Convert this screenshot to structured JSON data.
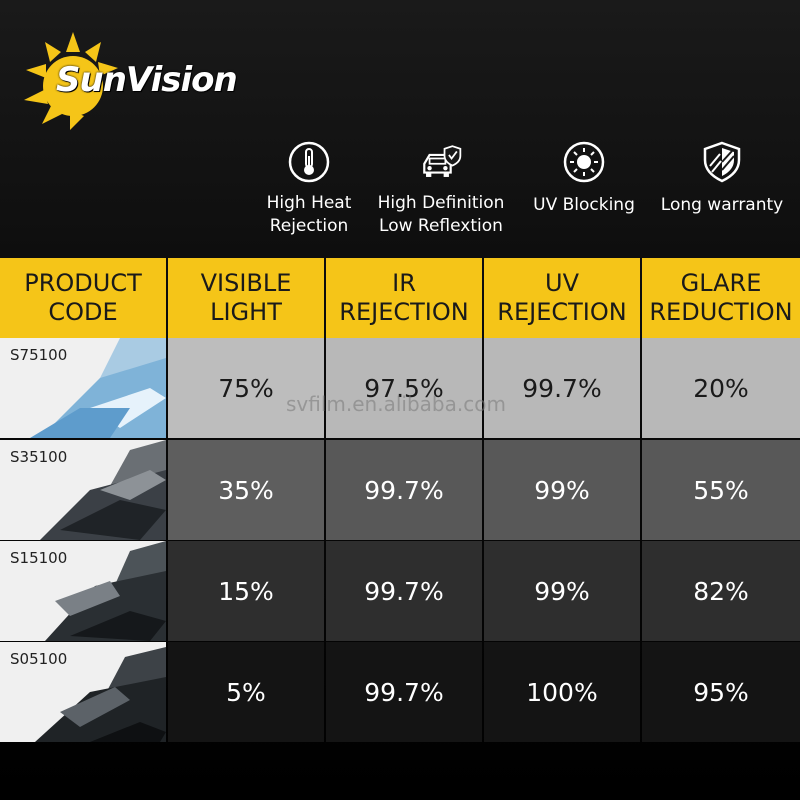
{
  "brand": {
    "name": "SunVision",
    "accent": "#f5c518"
  },
  "features": [
    {
      "icon": "thermometer-icon",
      "label": "High Heat\nRejection"
    },
    {
      "icon": "car-shield-icon",
      "label": "High Definition\nLow Reflextion"
    },
    {
      "icon": "sun-uv-icon",
      "label": "UV Blocking"
    },
    {
      "icon": "shield-icon",
      "label": "Long warranty"
    }
  ],
  "table": {
    "headers": [
      "PRODUCT\nCODE",
      "VISIBLE\nLIGHT",
      "IR\nREJECTION",
      "UV\nREJECTION",
      "GLARE\nREDUCTION"
    ],
    "rows": [
      {
        "code": "S75100",
        "visible_light": "75%",
        "ir_rejection": "97.5%",
        "uv_rejection": "99.7%",
        "glare_reduction": "20%"
      },
      {
        "code": "S35100",
        "visible_light": "35%",
        "ir_rejection": "99.7%",
        "uv_rejection": "99%",
        "glare_reduction": "55%"
      },
      {
        "code": "S15100",
        "visible_light": "15%",
        "ir_rejection": "99.7%",
        "uv_rejection": "99%",
        "glare_reduction": "82%"
      },
      {
        "code": "S05100",
        "visible_light": "5%",
        "ir_rejection": "99.7%",
        "uv_rejection": "100%",
        "glare_reduction": "95%"
      }
    ]
  },
  "watermark": "svfilm.en.alibaba.com"
}
